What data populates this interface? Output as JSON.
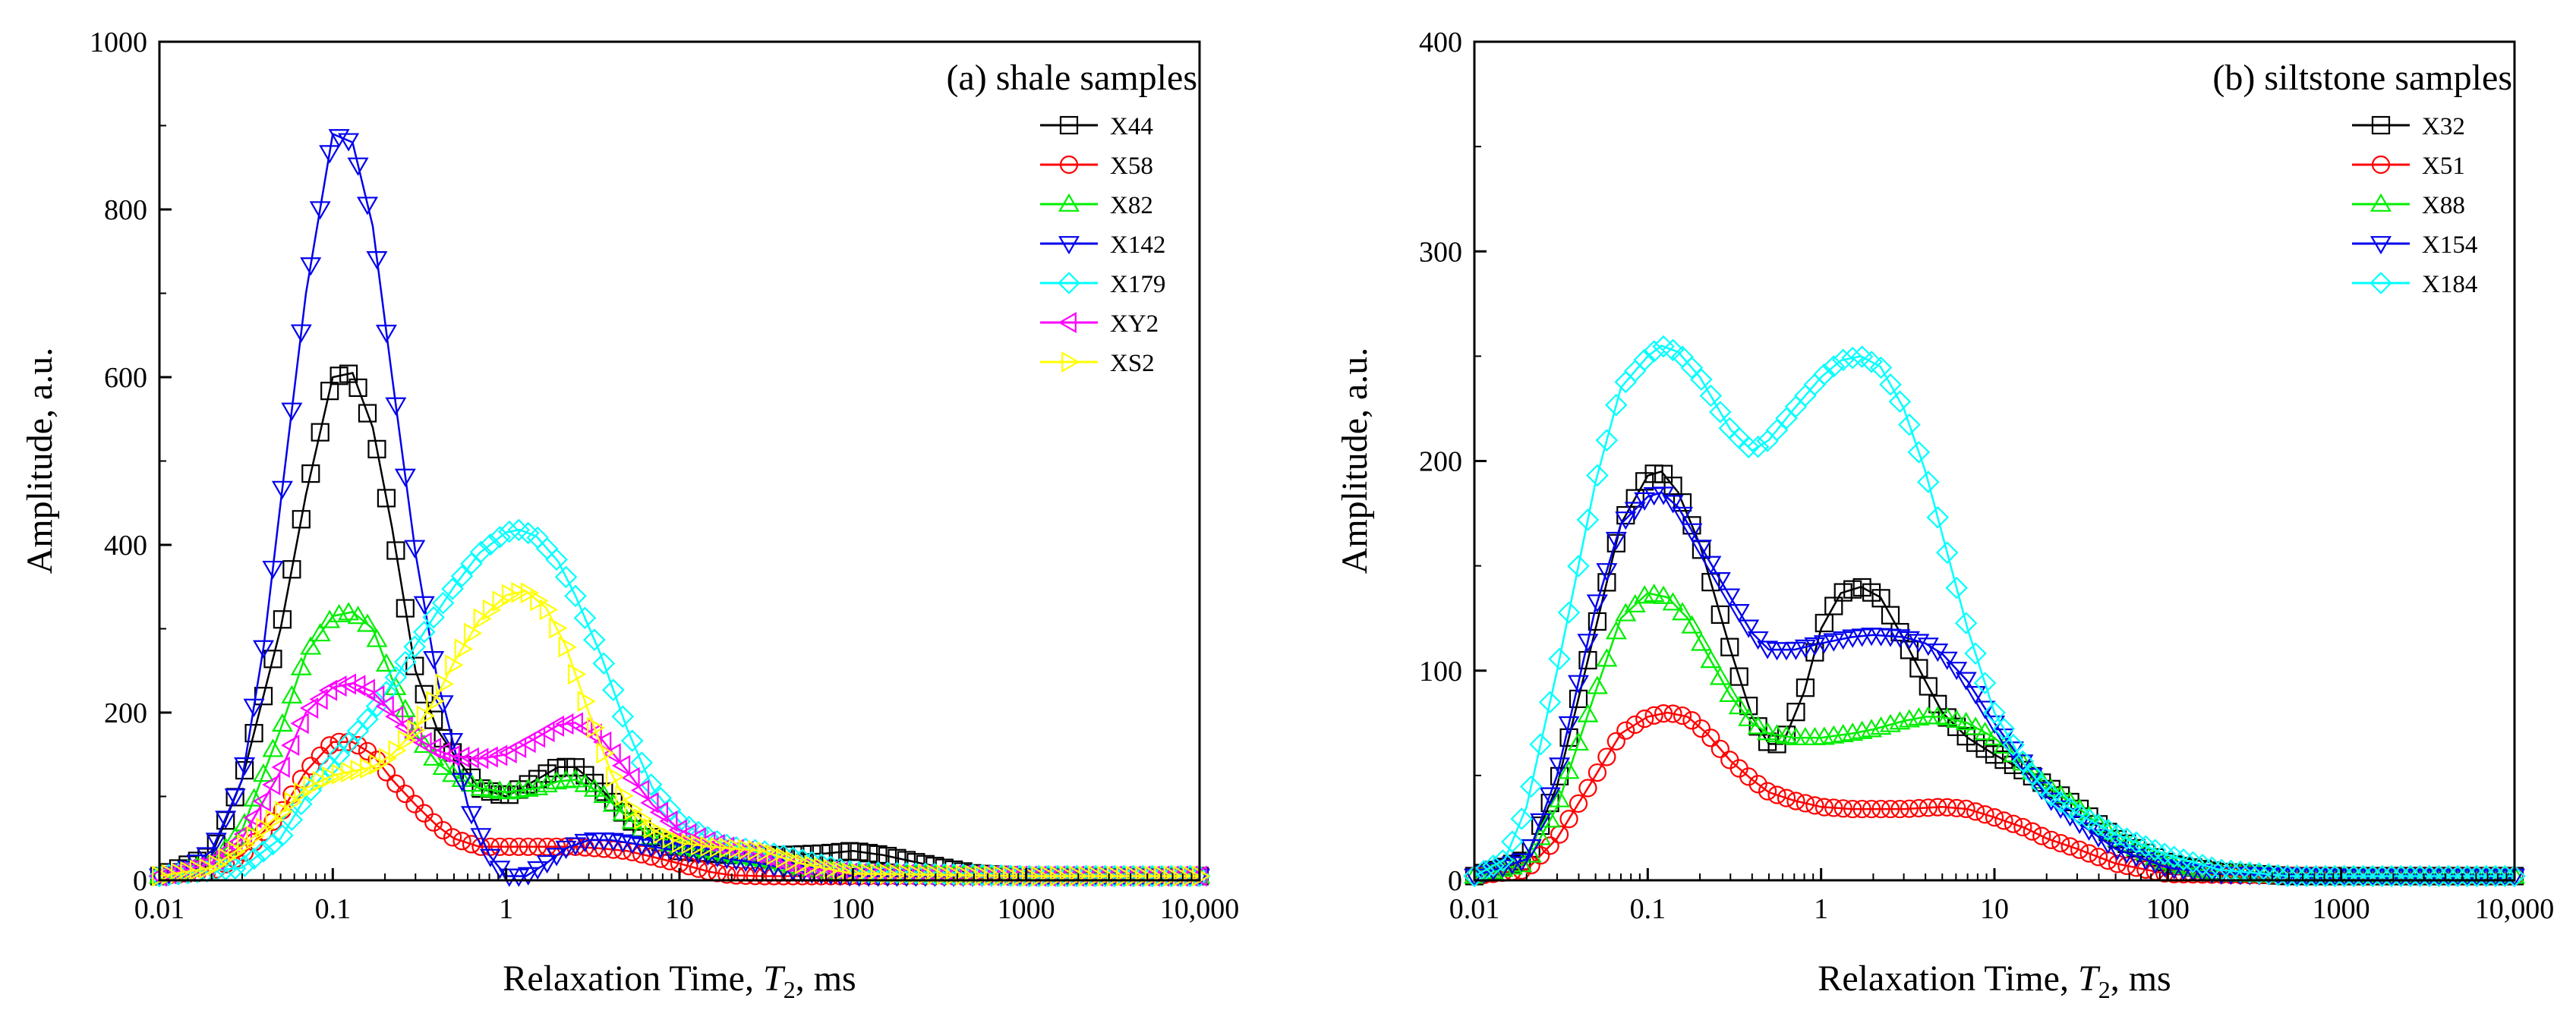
{
  "chart_data": [
    {
      "id": "a",
      "type": "line",
      "title": "(a) shale samples",
      "xlabel_prefix": "Relaxation Time, ",
      "xlabel_var": "T",
      "xlabel_sub": "2",
      "xlabel_suffix": ", ms",
      "ylabel": "Amplitude, a.u.",
      "xscale": "log",
      "xlim": [
        0.01,
        10000
      ],
      "ylim": [
        0,
        1000
      ],
      "xticks": [
        0.01,
        0.1,
        1,
        10,
        100,
        1000,
        10000
      ],
      "xtick_labels": [
        "0.01",
        "0.1",
        "1",
        "10",
        "100",
        "1000",
        "10,000"
      ],
      "yticks": [
        0,
        200,
        400,
        600,
        800,
        1000
      ],
      "ytick_labels": [
        "0",
        "200",
        "400",
        "600",
        "800",
        "1000"
      ],
      "legend_position": "top-right",
      "series": [
        {
          "name": "X44",
          "color": "#000000",
          "marker": "square",
          "x": [
            0.01,
            0.02,
            0.03,
            0.05,
            0.07,
            0.1,
            0.13,
            0.17,
            0.22,
            0.3,
            0.4,
            0.5,
            0.7,
            1.0,
            1.5,
            2.0,
            2.5,
            3.5,
            5,
            7,
            10,
            20,
            40,
            70,
            100,
            150,
            250,
            500,
            1000,
            10000
          ],
          "y": [
            5,
            30,
            120,
            300,
            460,
            600,
            605,
            540,
            420,
            250,
            180,
            150,
            110,
            100,
            120,
            135,
            135,
            110,
            75,
            50,
            35,
            30,
            30,
            32,
            35,
            30,
            20,
            8,
            5,
            5
          ]
        },
        {
          "name": "X58",
          "color": "#ff0000",
          "marker": "circle",
          "x": [
            0.01,
            0.02,
            0.03,
            0.05,
            0.07,
            0.1,
            0.13,
            0.17,
            0.22,
            0.3,
            0.4,
            0.5,
            0.7,
            1.0,
            1.5,
            2.0,
            2.5,
            3.5,
            5,
            7,
            10,
            15,
            20,
            30,
            50,
            100,
            1000,
            10000
          ],
          "y": [
            5,
            10,
            30,
            80,
            130,
            165,
            165,
            150,
            120,
            90,
            65,
            50,
            40,
            40,
            40,
            40,
            40,
            38,
            35,
            28,
            20,
            10,
            6,
            5,
            5,
            5,
            5,
            5
          ]
        },
        {
          "name": "X82",
          "color": "#00ee00",
          "marker": "triangle-up",
          "x": [
            0.01,
            0.02,
            0.03,
            0.05,
            0.07,
            0.1,
            0.13,
            0.17,
            0.22,
            0.3,
            0.4,
            0.5,
            0.7,
            1.0,
            1.5,
            2.0,
            2.5,
            3.5,
            5,
            7,
            10,
            15,
            20,
            30,
            50,
            100,
            1000,
            10000
          ],
          "y": [
            5,
            20,
            60,
            180,
            270,
            315,
            320,
            300,
            240,
            175,
            140,
            125,
            110,
            105,
            110,
            118,
            120,
            105,
            75,
            50,
            40,
            35,
            30,
            25,
            15,
            8,
            5,
            5
          ]
        },
        {
          "name": "X142",
          "color": "#0000ee",
          "marker": "triangle-down",
          "x": [
            0.01,
            0.015,
            0.02,
            0.03,
            0.04,
            0.05,
            0.07,
            0.1,
            0.13,
            0.17,
            0.22,
            0.3,
            0.4,
            0.5,
            0.6,
            0.8,
            1.0,
            1.3,
            1.7,
            2.2,
            3.0,
            4.0,
            5.0,
            7,
            10,
            15,
            20,
            30,
            50,
            100,
            1000,
            10000
          ],
          "y": [
            5,
            15,
            35,
            120,
            280,
            450,
            700,
            890,
            880,
            780,
            600,
            390,
            240,
            160,
            90,
            30,
            5,
            5,
            20,
            38,
            48,
            48,
            45,
            40,
            35,
            30,
            25,
            20,
            10,
            5,
            5,
            5
          ]
        },
        {
          "name": "X179",
          "color": "#00ffff",
          "marker": "diamond",
          "x": [
            0.01,
            0.03,
            0.05,
            0.07,
            0.1,
            0.13,
            0.17,
            0.22,
            0.3,
            0.4,
            0.5,
            0.7,
            1.0,
            1.2,
            1.5,
            2.0,
            2.5,
            3.5,
            5,
            7,
            10,
            15,
            20,
            30,
            50,
            100,
            1000,
            10000
          ],
          "y": [
            5,
            15,
            50,
            100,
            140,
            170,
            200,
            235,
            280,
            320,
            350,
            390,
            415,
            418,
            410,
            380,
            340,
            270,
            180,
            110,
            70,
            50,
            40,
            35,
            25,
            10,
            5,
            5
          ]
        },
        {
          "name": "XY2",
          "color": "#ff00ff",
          "marker": "triangle-left",
          "x": [
            0.01,
            0.02,
            0.03,
            0.05,
            0.07,
            0.1,
            0.13,
            0.17,
            0.22,
            0.3,
            0.4,
            0.5,
            0.7,
            1.0,
            1.5,
            2.0,
            2.5,
            3.5,
            5,
            7,
            10,
            15,
            20,
            30,
            50,
            100,
            1000,
            10000
          ],
          "y": [
            5,
            20,
            50,
            130,
            200,
            230,
            235,
            225,
            200,
            170,
            155,
            148,
            145,
            150,
            170,
            185,
            188,
            170,
            130,
            90,
            60,
            45,
            38,
            30,
            15,
            8,
            5,
            5
          ]
        },
        {
          "name": "XS2",
          "color": "#ffff00",
          "marker": "triangle-right",
          "x": [
            0.01,
            0.02,
            0.03,
            0.05,
            0.07,
            0.1,
            0.13,
            0.17,
            0.22,
            0.3,
            0.4,
            0.5,
            0.7,
            1.0,
            1.3,
            1.7,
            2.2,
            3.0,
            4.0,
            5,
            7,
            10,
            15,
            20,
            30,
            50,
            100,
            1000,
            10000
          ],
          "y": [
            5,
            15,
            40,
            80,
            110,
            125,
            130,
            135,
            150,
            180,
            220,
            260,
            310,
            340,
            345,
            325,
            280,
            200,
            130,
            90,
            60,
            45,
            40,
            38,
            35,
            20,
            8,
            5,
            5
          ]
        }
      ]
    },
    {
      "id": "b",
      "type": "line",
      "title": "(b) siltstone samples",
      "xlabel_prefix": "Relaxation Time, ",
      "xlabel_var": "T",
      "xlabel_sub": "2",
      "xlabel_suffix": ", ms",
      "ylabel": "Amplitude, a.u.",
      "xscale": "log",
      "xlim": [
        0.01,
        10000
      ],
      "ylim": [
        0,
        400
      ],
      "xticks": [
        0.01,
        0.1,
        1,
        10,
        100,
        1000,
        10000
      ],
      "xtick_labels": [
        "0.01",
        "0.1",
        "1",
        "10",
        "100",
        "1000",
        "10,000"
      ],
      "yticks": [
        0,
        100,
        200,
        300,
        400
      ],
      "ytick_labels": [
        "0",
        "100",
        "200",
        "300",
        "400"
      ],
      "legend_position": "top-right",
      "series": [
        {
          "name": "X32",
          "color": "#000000",
          "marker": "square",
          "x": [
            0.01,
            0.02,
            0.03,
            0.05,
            0.07,
            0.1,
            0.12,
            0.15,
            0.2,
            0.3,
            0.4,
            0.5,
            0.6,
            0.8,
            1.0,
            1.3,
            1.7,
            2.2,
            3.0,
            4.0,
            5,
            7,
            10,
            15,
            20,
            30,
            50,
            100,
            200,
            500,
            1000,
            10000
          ],
          "y": [
            2,
            10,
            45,
            120,
            170,
            193,
            195,
            185,
            160,
            110,
            78,
            65,
            65,
            90,
            120,
            137,
            140,
            135,
            115,
            95,
            80,
            68,
            60,
            52,
            45,
            35,
            20,
            8,
            4,
            2,
            2,
            2
          ]
        },
        {
          "name": "X51",
          "color": "#ff0000",
          "marker": "circle",
          "x": [
            0.01,
            0.02,
            0.03,
            0.05,
            0.07,
            0.1,
            0.13,
            0.17,
            0.22,
            0.3,
            0.4,
            0.5,
            0.7,
            1.0,
            1.5,
            2.0,
            3.0,
            5,
            7,
            10,
            15,
            20,
            30,
            50,
            100,
            1000,
            10000
          ],
          "y": [
            2,
            5,
            20,
            50,
            70,
            78,
            80,
            78,
            70,
            57,
            48,
            42,
            38,
            35,
            34,
            34,
            34,
            35,
            34,
            30,
            25,
            20,
            15,
            8,
            3,
            2,
            2
          ]
        },
        {
          "name": "X88",
          "color": "#00ee00",
          "marker": "triangle-up",
          "x": [
            0.01,
            0.02,
            0.03,
            0.05,
            0.07,
            0.1,
            0.13,
            0.17,
            0.22,
            0.3,
            0.4,
            0.5,
            0.7,
            1.0,
            1.5,
            2.0,
            3.0,
            4.0,
            5,
            7,
            10,
            15,
            20,
            30,
            50,
            100,
            200,
            1000,
            10000
          ],
          "y": [
            2,
            8,
            35,
            90,
            125,
            137,
            135,
            125,
            108,
            88,
            75,
            70,
            68,
            68,
            70,
            72,
            76,
            78,
            78,
            75,
            68,
            55,
            45,
            35,
            20,
            8,
            3,
            2,
            2
          ]
        },
        {
          "name": "X154",
          "color": "#0000ee",
          "marker": "triangle-down",
          "x": [
            0.01,
            0.02,
            0.03,
            0.05,
            0.07,
            0.1,
            0.12,
            0.15,
            0.2,
            0.3,
            0.4,
            0.5,
            0.7,
            1.0,
            1.5,
            2.0,
            3.0,
            4.0,
            5,
            7,
            10,
            15,
            20,
            30,
            50,
            100,
            200,
            1000,
            10000
          ],
          "y": [
            2,
            10,
            50,
            130,
            170,
            183,
            185,
            178,
            160,
            135,
            118,
            110,
            110,
            113,
            116,
            117,
            116,
            113,
            108,
            95,
            75,
            55,
            40,
            28,
            15,
            6,
            3,
            2,
            2
          ]
        },
        {
          "name": "X184",
          "color": "#00ffff",
          "marker": "diamond",
          "x": [
            0.01,
            0.015,
            0.02,
            0.03,
            0.05,
            0.07,
            0.1,
            0.12,
            0.15,
            0.2,
            0.3,
            0.4,
            0.5,
            0.7,
            1.0,
            1.3,
            1.7,
            2.2,
            3.0,
            4.0,
            5,
            7,
            10,
            15,
            20,
            30,
            50,
            100,
            200,
            500,
            1000,
            10000
          ],
          "y": [
            2,
            10,
            35,
            100,
            190,
            235,
            250,
            255,
            252,
            240,
            215,
            205,
            210,
            225,
            240,
            248,
            250,
            245,
            225,
            195,
            165,
            120,
            80,
            55,
            42,
            32,
            22,
            12,
            5,
            2,
            2,
            2
          ]
        }
      ]
    }
  ]
}
